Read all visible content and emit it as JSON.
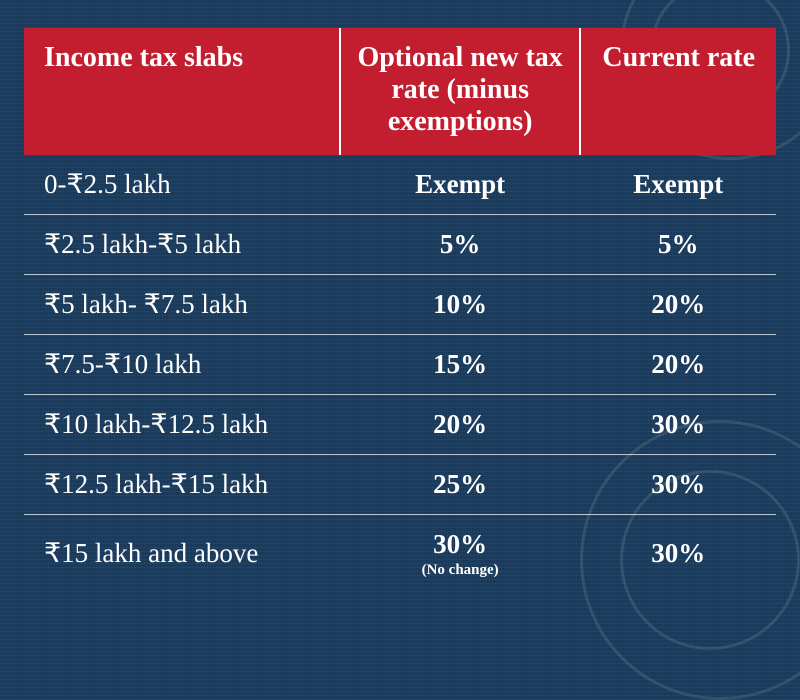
{
  "table": {
    "type": "table",
    "background_color": "#1a3a5c",
    "header_bg": "#c31e2f",
    "text_color": "#ffffff",
    "row_border_color": "rgba(255,255,255,0.7)",
    "header_fontsize": 28,
    "cell_fontsize": 27,
    "note_fontsize": 15,
    "columns": [
      {
        "label": "Income tax slabs",
        "width_pct": 42,
        "align": "left"
      },
      {
        "label": "Optional new tax rate (minus exemptions)",
        "width_pct": 32,
        "align": "center"
      },
      {
        "label": "Current rate",
        "width_pct": 26,
        "align": "center"
      }
    ],
    "rows": [
      {
        "slab": "0-₹2.5 lakh",
        "new_rate": "Exempt",
        "current_rate": "Exempt"
      },
      {
        "slab": "₹2.5 lakh-₹5 lakh",
        "new_rate": "5%",
        "current_rate": "5%"
      },
      {
        "slab": "₹5 lakh- ₹7.5 lakh",
        "new_rate": "10%",
        "current_rate": "20%"
      },
      {
        "slab": "₹7.5-₹10 lakh",
        "new_rate": "15%",
        "current_rate": "20%"
      },
      {
        "slab": "₹10 lakh-₹12.5 lakh",
        "new_rate": "20%",
        "current_rate": "30%"
      },
      {
        "slab": "₹12.5 lakh-₹15 lakh",
        "new_rate": "25%",
        "current_rate": "30%"
      },
      {
        "slab": "₹15 lakh and above",
        "new_rate": "30%",
        "new_rate_note": "(No change)",
        "current_rate": "30%"
      }
    ]
  }
}
